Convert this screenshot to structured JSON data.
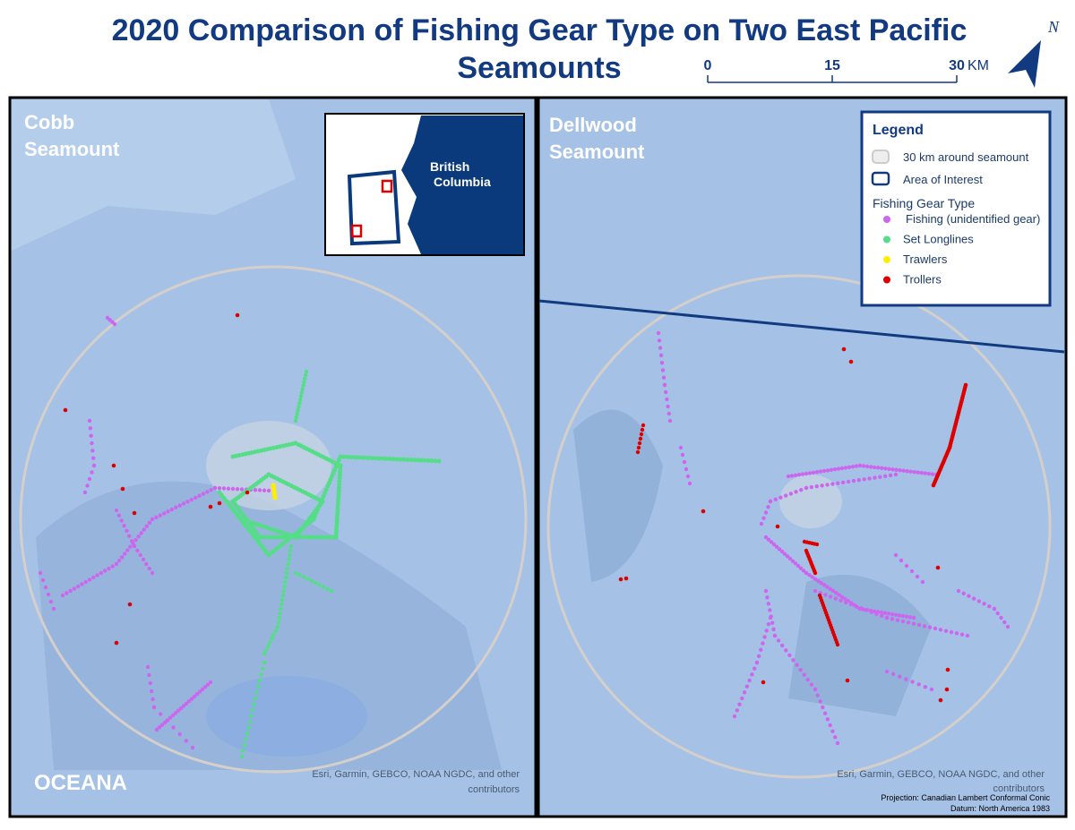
{
  "header": {
    "title_line1": "2020 Comparison of Fishing Gear Type on Two East Pacific",
    "title_line2": "Seamounts"
  },
  "scale_bar": {
    "ticks": [
      0,
      15,
      30
    ],
    "unit": "KM"
  },
  "north_label": "N",
  "panels": [
    {
      "label_line1": "Cobb",
      "label_line2": "Seamount",
      "credit_line1": "Esri, Garmin, GEBCO, NOAA NGDC, and other",
      "credit_line2": "contributors"
    },
    {
      "label_line1": "Dellwood",
      "label_line2": "Seamount",
      "credit_line1": "Esri, Garmin, GEBCO, NOAA NGDC, and other",
      "credit_line2": "contributors"
    }
  ],
  "inset": {
    "label_line1": "British",
    "label_line2": "Columbia"
  },
  "legend": {
    "title": "Legend",
    "buffer": "30 km around seamount",
    "aoi": "Area of Interest",
    "gear_heading": "Fishing Gear Type",
    "gear_types": [
      {
        "name": "Fishing (unidentified gear)",
        "color": "#cc66ee"
      },
      {
        "name": "Set Longlines",
        "color": "#55dd88"
      },
      {
        "name": "Trawlers",
        "color": "#ffee00"
      },
      {
        "name": "Trollers",
        "color": "#dd0000"
      }
    ]
  },
  "logo": "OCEANA",
  "projection": "Projection: Canadian Lambert Conformal Conic",
  "datum": "Datum: North America 1983"
}
